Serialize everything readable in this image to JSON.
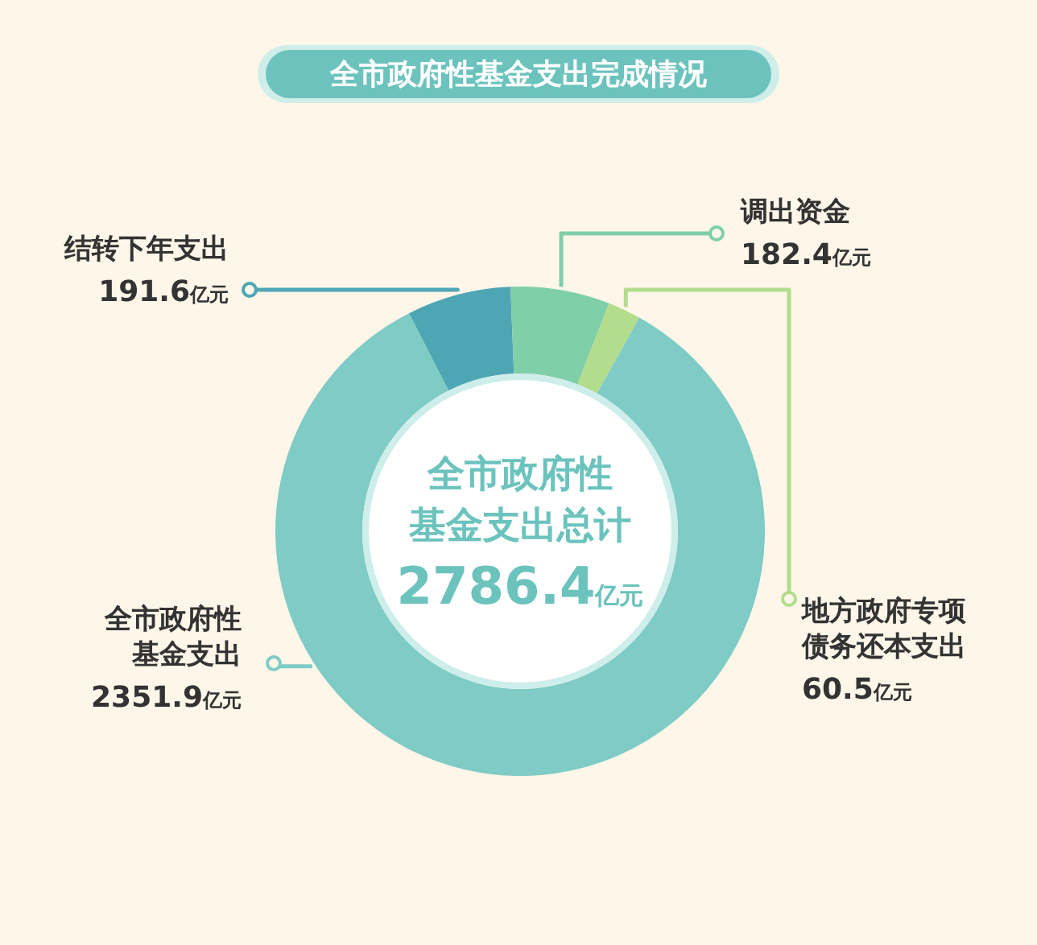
{
  "chart_data": {
    "type": "donut",
    "title": "全市政府性基金支出完成情况",
    "categories": [
      "结转下年支出",
      "调出资金",
      "地方政府专项债务还本支出",
      "全市政府性基金支出"
    ],
    "values": [
      191.6,
      182.4,
      60.5,
      2351.9
    ],
    "colors": [
      "#4ea6b4",
      "#7fcfa9",
      "#b3dd8c",
      "#7fcbc5"
    ],
    "value_labels": [
      "191.6亿元",
      "182.4亿元",
      "60.5亿元",
      "2351.9亿元"
    ],
    "annotations": [
      "全市政府性基金支出总计",
      "2786.4亿元"
    ]
  }
}
